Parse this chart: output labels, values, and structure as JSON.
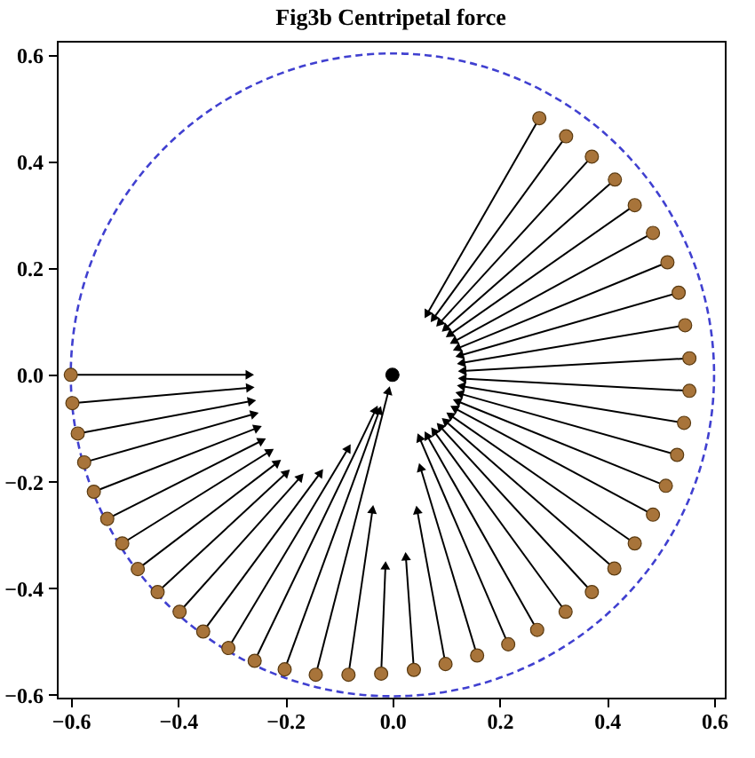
{
  "chart_data": {
    "type": "scatter",
    "title": "Fig3b   Centripetal force",
    "xlim": [
      -0.626,
      0.62
    ],
    "ylim": [
      -0.605,
      0.626
    ],
    "xticks": [
      -0.6,
      -0.4,
      -0.2,
      {
        "value": 0,
        "label": "0.0"
      },
      0.2,
      0.4,
      0.6
    ],
    "yticks": [
      -0.6,
      -0.4,
      -0.2,
      {
        "value": 0,
        "label": "0.0"
      },
      0.2,
      0.4,
      0.6
    ],
    "grid": false,
    "series": [
      {
        "type": "line",
        "color": "#000000",
        "marker": "triangle",
        "x": [
          -0.6,
          -0.266
        ],
        "values": [
          0,
          0
        ]
      },
      {
        "type": "line",
        "color": "#000000",
        "marker": "triangle",
        "x": [
          -0.597,
          -0.265
        ],
        "values": [
          -0.053,
          -0.024
        ]
      },
      {
        "type": "line",
        "color": "#000000",
        "marker": "triangle",
        "x": [
          -0.587,
          -0.262
        ],
        "values": [
          -0.11,
          -0.049
        ]
      },
      {
        "type": "line",
        "color": "#000000",
        "marker": "triangle",
        "x": [
          -0.575,
          -0.257
        ],
        "values": [
          -0.164,
          -0.073
        ]
      },
      {
        "type": "line",
        "color": "#000000",
        "marker": "triangle",
        "x": [
          -0.557,
          -0.251
        ],
        "values": [
          -0.219,
          -0.099
        ]
      },
      {
        "type": "line",
        "color": "#000000",
        "marker": "triangle",
        "x": [
          -0.532,
          -0.243
        ],
        "values": [
          -0.27,
          -0.123
        ]
      },
      {
        "type": "line",
        "color": "#000000",
        "marker": "triangle",
        "x": [
          -0.504,
          -0.228
        ],
        "values": [
          -0.316,
          -0.143
        ]
      },
      {
        "type": "line",
        "color": "#000000",
        "marker": "triangle",
        "x": [
          -0.475,
          -0.214
        ],
        "values": [
          -0.364,
          -0.164
        ]
      },
      {
        "type": "line",
        "color": "#000000",
        "marker": "triangle",
        "x": [
          -0.438,
          -0.197
        ],
        "values": [
          -0.407,
          -0.183
        ]
      },
      {
        "type": "line",
        "color": "#000000",
        "marker": "triangle",
        "x": [
          -0.397,
          -0.171
        ],
        "values": [
          -0.444,
          -0.191
        ]
      },
      {
        "type": "line",
        "color": "#000000",
        "marker": "triangle",
        "x": [
          -0.353,
          -0.134
        ],
        "values": [
          -0.481,
          -0.183
        ]
      },
      {
        "type": "line",
        "color": "#000000",
        "marker": "triangle",
        "x": [
          -0.306,
          -0.082
        ],
        "values": [
          -0.512,
          -0.137
        ]
      },
      {
        "type": "line",
        "color": "#000000",
        "marker": "triangle",
        "x": [
          -0.257,
          -0.031
        ],
        "values": [
          -0.536,
          -0.065
        ]
      },
      {
        "type": "line",
        "color": "#000000",
        "marker": "triangle",
        "x": [
          -0.201,
          -0.024
        ],
        "values": [
          -0.552,
          -0.066
        ]
      },
      {
        "type": "line",
        "color": "#000000",
        "marker": "triangle",
        "x": [
          -0.143,
          -0.007
        ],
        "values": [
          -0.562,
          -0.029
        ]
      },
      {
        "type": "line",
        "color": "#000000",
        "marker": "triangle",
        "x": [
          -0.082,
          -0.037
        ],
        "values": [
          -0.562,
          -0.252
        ]
      },
      {
        "type": "line",
        "color": "#000000",
        "marker": "triangle",
        "x": [
          -0.021,
          -0.013
        ],
        "values": [
          -0.56,
          -0.357
        ]
      },
      {
        "type": "line",
        "color": "#000000",
        "marker": "triangle",
        "x": [
          0.04,
          0.025
        ],
        "values": [
          -0.553,
          -0.34
        ]
      },
      {
        "type": "line",
        "color": "#000000",
        "marker": "triangle",
        "x": [
          0.099,
          0.046
        ],
        "values": [
          -0.542,
          -0.253
        ]
      },
      {
        "type": "line",
        "color": "#000000",
        "marker": "triangle",
        "x": [
          0.158,
          0.052
        ],
        "values": [
          -0.526,
          -0.173
        ]
      },
      {
        "type": "line",
        "color": "#000000",
        "marker": "triangle",
        "x": [
          0.216,
          0.05
        ],
        "values": [
          -0.505,
          -0.117
        ]
      },
      {
        "type": "line",
        "color": "#000000",
        "marker": "triangle",
        "x": [
          0.27,
          0.064
        ],
        "values": [
          -0.478,
          -0.113
        ]
      },
      {
        "type": "line",
        "color": "#000000",
        "marker": "triangle",
        "x": [
          0.323,
          0.077
        ],
        "values": [
          -0.444,
          -0.105
        ]
      },
      {
        "type": "line",
        "color": "#000000",
        "marker": "triangle",
        "x": [
          0.372,
          0.088
        ],
        "values": [
          -0.407,
          -0.096
        ]
      },
      {
        "type": "line",
        "color": "#000000",
        "marker": "triangle",
        "x": [
          0.414,
          0.098
        ],
        "values": [
          -0.363,
          -0.086
        ]
      },
      {
        "type": "line",
        "color": "#000000",
        "marker": "triangle",
        "x": [
          0.452,
          0.107
        ],
        "values": [
          -0.316,
          -0.075
        ]
      },
      {
        "type": "line",
        "color": "#000000",
        "marker": "triangle",
        "x": [
          0.486,
          0.115
        ],
        "values": [
          -0.262,
          -0.062
        ]
      },
      {
        "type": "line",
        "color": "#000000",
        "marker": "triangle",
        "x": [
          0.51,
          0.12
        ],
        "values": [
          -0.208,
          -0.049
        ]
      },
      {
        "type": "line",
        "color": "#000000",
        "marker": "triangle",
        "x": [
          0.531,
          0.125
        ],
        "values": [
          -0.15,
          -0.035
        ]
      },
      {
        "type": "line",
        "color": "#000000",
        "marker": "triangle",
        "x": [
          0.544,
          0.128
        ],
        "values": [
          -0.09,
          -0.021
        ]
      },
      {
        "type": "line",
        "color": "#000000",
        "marker": "triangle",
        "x": [
          0.554,
          0.13
        ],
        "values": [
          -0.03,
          -0.007
        ]
      },
      {
        "type": "line",
        "color": "#000000",
        "marker": "triangle",
        "x": [
          0.554,
          0.13
        ],
        "values": [
          0.031,
          0.007
        ]
      },
      {
        "type": "line",
        "color": "#000000",
        "marker": "triangle",
        "x": [
          0.546,
          0.128
        ],
        "values": [
          0.093,
          0.022
        ]
      },
      {
        "type": "line",
        "color": "#000000",
        "marker": "triangle",
        "x": [
          0.534,
          0.125
        ],
        "values": [
          0.154,
          0.036
        ]
      },
      {
        "type": "line",
        "color": "#000000",
        "marker": "triangle",
        "x": [
          0.513,
          0.12
        ],
        "values": [
          0.211,
          0.049
        ]
      },
      {
        "type": "line",
        "color": "#000000",
        "marker": "triangle",
        "x": [
          0.486,
          0.114
        ],
        "values": [
          0.266,
          0.062
        ]
      },
      {
        "type": "line",
        "color": "#000000",
        "marker": "triangle",
        "x": [
          0.452,
          0.106
        ],
        "values": [
          0.318,
          0.075
        ]
      },
      {
        "type": "line",
        "color": "#000000",
        "marker": "triangle",
        "x": [
          0.415,
          0.098
        ],
        "values": [
          0.366,
          0.086
        ]
      },
      {
        "type": "line",
        "color": "#000000",
        "marker": "triangle",
        "x": [
          0.372,
          0.087
        ],
        "values": [
          0.409,
          0.096
        ]
      },
      {
        "type": "line",
        "color": "#000000",
        "marker": "triangle",
        "x": [
          0.324,
          0.076
        ],
        "values": [
          0.447,
          0.105
        ]
      },
      {
        "type": "line",
        "color": "#000000",
        "marker": "triangle",
        "x": [
          0.274,
          0.064
        ],
        "values": [
          0.481,
          0.113
        ]
      },
      {
        "type": "scatter",
        "color": "#a8743a",
        "marker": "circle",
        "x": [
          -0.6,
          -0.597,
          -0.587,
          -0.575,
          -0.557,
          -0.532,
          -0.504,
          -0.475,
          -0.438,
          -0.397,
          -0.353,
          -0.306,
          -0.257,
          -0.201,
          -0.143,
          -0.082,
          -0.021,
          0.04,
          0.099,
          0.158,
          0.216,
          0.27,
          0.323,
          0.372,
          0.414,
          0.452,
          0.486,
          0.51,
          0.531,
          0.544,
          0.554,
          0.554,
          0.546,
          0.534,
          0.513,
          0.486,
          0.452,
          0.415,
          0.372,
          0.324,
          0.274
        ],
        "values": [
          0,
          -0.053,
          -0.11,
          -0.164,
          -0.219,
          -0.27,
          -0.316,
          -0.364,
          -0.407,
          -0.444,
          -0.481,
          -0.512,
          -0.536,
          -0.552,
          -0.562,
          -0.562,
          -0.56,
          -0.553,
          -0.542,
          -0.526,
          -0.505,
          -0.478,
          -0.444,
          -0.407,
          -0.363,
          -0.316,
          -0.262,
          -0.208,
          -0.15,
          -0.09,
          -0.03,
          0.031,
          0.093,
          0.154,
          0.211,
          0.266,
          0.318,
          0.366,
          0.409,
          0.447,
          0.481
        ]
      },
      {
        "type": "scatter",
        "color": "#000000",
        "marker": "circle",
        "x": [
          0.0
        ],
        "values": [
          0.0
        ]
      }
    ]
  }
}
